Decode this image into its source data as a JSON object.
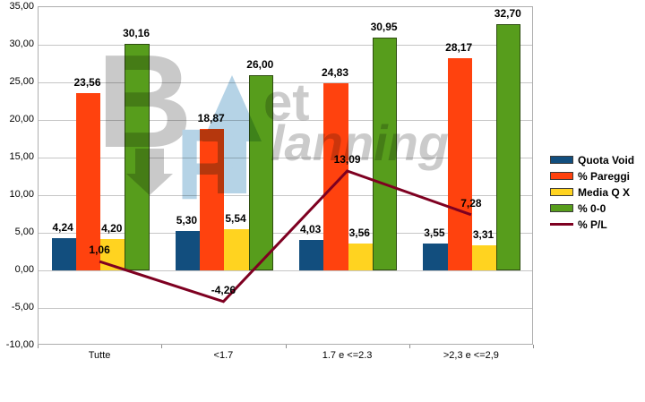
{
  "watermark": {
    "letter_b": "B",
    "text_et": "et",
    "letter_p": "P",
    "text_lanning": "lanning",
    "grey": "#c9c9c9",
    "blue": "#b5d3e6"
  },
  "chart_data": {
    "type": "bar",
    "subtype": "combo-bar-line",
    "categories": [
      "Tutte",
      "<1.7",
      "1.7 e <=2.3",
      ">2,3 e <=2,9"
    ],
    "series": [
      {
        "name": "Quota Void",
        "type": "bar",
        "color": "#124e7e",
        "values": [
          4.24,
          5.3,
          4.03,
          3.55
        ],
        "labels": [
          "4,24",
          "5,30",
          "4,03",
          "3,55"
        ]
      },
      {
        "name": "% Pareggi",
        "type": "bar",
        "color": "#ff420e",
        "values": [
          23.56,
          18.87,
          24.83,
          28.17
        ],
        "labels": [
          "23,56",
          "18,87",
          "24,83",
          "28,17"
        ]
      },
      {
        "name": "Media Q X",
        "type": "bar",
        "color": "#ffd320",
        "values": [
          4.2,
          5.54,
          3.56,
          3.31
        ],
        "labels": [
          "4,20",
          "5,54",
          "3,56",
          "3,31"
        ]
      },
      {
        "name": "% 0-0",
        "type": "bar",
        "color": "#579d1c",
        "border": "#2e4d10",
        "values": [
          30.16,
          26.0,
          30.95,
          32.7
        ],
        "labels": [
          "30,16",
          "26,00",
          "30,95",
          "32,70"
        ]
      },
      {
        "name": "% P/L",
        "type": "line",
        "color": "#7e0021",
        "values": [
          1.06,
          -4.26,
          13.09,
          7.28
        ],
        "labels": [
          "1,06",
          "-4,26",
          "13,09",
          "7,28"
        ]
      }
    ],
    "ylim": [
      -10,
      35
    ],
    "ytick_step": 5,
    "y_tick_labels": [
      "35,00",
      "30,00",
      "25,00",
      "20,00",
      "15,00",
      "10,00",
      "5,00",
      "0,00",
      "-5,00",
      "-10,00"
    ],
    "grid": true,
    "legend_position": "right",
    "title": "",
    "xlabel": "",
    "ylabel": ""
  }
}
